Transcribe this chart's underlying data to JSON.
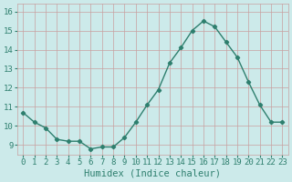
{
  "x": [
    0,
    1,
    2,
    3,
    4,
    5,
    6,
    7,
    8,
    9,
    10,
    11,
    12,
    13,
    14,
    15,
    16,
    17,
    18,
    19,
    20,
    21,
    22,
    23
  ],
  "y": [
    10.7,
    10.2,
    9.9,
    9.3,
    9.2,
    9.2,
    8.8,
    8.9,
    8.9,
    9.4,
    10.2,
    11.1,
    11.9,
    13.3,
    14.1,
    15.0,
    15.5,
    15.2,
    14.4,
    13.6,
    12.3,
    11.1,
    10.2,
    10.2
  ],
  "line_color": "#2e7f6e",
  "marker": "D",
  "marker_size": 2.2,
  "bg_color": "#cceaea",
  "grid_color": "#c8a0a0",
  "xlabel": "Humidex (Indice chaleur)",
  "xlabel_fontsize": 7.5,
  "ylabel_ticks": [
    9,
    10,
    11,
    12,
    13,
    14,
    15,
    16
  ],
  "xlim": [
    -0.5,
    23.5
  ],
  "ylim": [
    8.5,
    16.4
  ],
  "xtick_labels": [
    "0",
    "1",
    "2",
    "3",
    "4",
    "5",
    "6",
    "7",
    "8",
    "9",
    "10",
    "11",
    "12",
    "13",
    "14",
    "15",
    "16",
    "17",
    "18",
    "19",
    "20",
    "21",
    "22",
    "23"
  ],
  "tick_fontsize": 6.5,
  "line_width": 1.0
}
